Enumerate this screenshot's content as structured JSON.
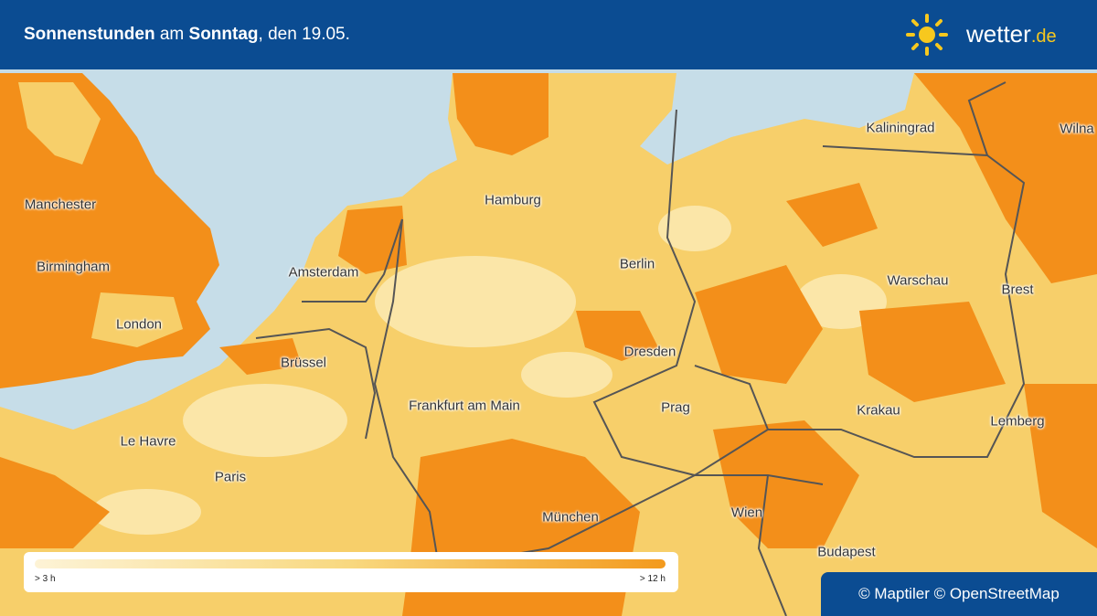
{
  "header": {
    "title": {
      "part1": "Sonnenstunden",
      "part2": "am",
      "part3": "Sonntag",
      "part4": ", den 19.05."
    },
    "logo": {
      "name": "wetter",
      "tld": ".de"
    }
  },
  "map": {
    "cities": [
      "Manchester",
      "Birmingham",
      "London",
      "Amsterdam",
      "Brüssel",
      "Le Havre",
      "Paris",
      "Hamburg",
      "Berlin",
      "Dresden",
      "Frankfurt am Main",
      "Prag",
      "München",
      "Wien",
      "Budapest",
      "Krakau",
      "Warschau",
      "Kaliningrad",
      "Wilna",
      "Brest",
      "Lemberg"
    ]
  },
  "legend": {
    "min_label": "> 3 h",
    "max_label": "> 12 h"
  },
  "attribution": "© Maptiler © OpenStreetMap"
}
